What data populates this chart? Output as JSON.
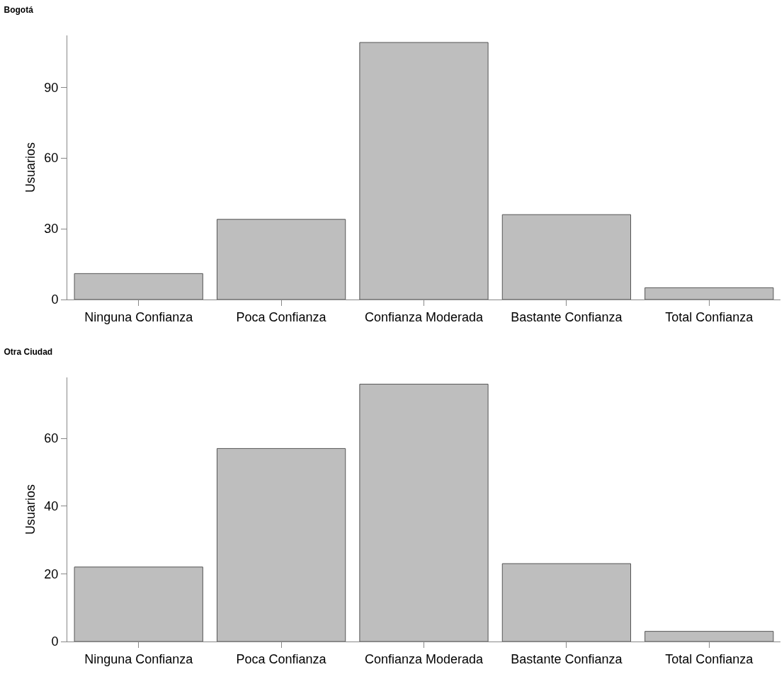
{
  "chart_data": [
    {
      "type": "bar",
      "title": "Bogotá",
      "ylabel": "Usuarios",
      "categories": [
        "Ninguna Confianza",
        "Poca Confianza",
        "Confianza Moderada",
        "Bastante Confianza",
        "Total Confianza"
      ],
      "values": [
        11,
        34,
        109,
        36,
        5
      ],
      "color": "#bebebe",
      "ylim": [
        0,
        112
      ],
      "yticks": [
        0,
        30,
        60,
        90
      ],
      "grid": false
    },
    {
      "type": "bar",
      "title": "Otra Ciudad",
      "ylabel": "Usuarios",
      "categories": [
        "Ninguna Confianza",
        "Poca Confianza",
        "Confianza Moderada",
        "Bastante Confianza",
        "Total Confianza"
      ],
      "values": [
        22,
        57,
        76,
        23,
        3
      ],
      "color": "#bebebe",
      "ylim": [
        0,
        78
      ],
      "yticks": [
        0,
        20,
        40,
        60
      ],
      "grid": false
    }
  ]
}
